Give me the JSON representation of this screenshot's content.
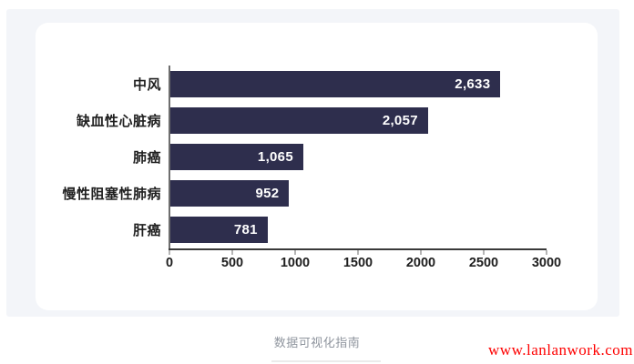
{
  "page": {
    "footer_caption": "数据可视化指南",
    "watermark": "www.lanlanwork.com",
    "background_color": "#ffffff",
    "panel_color": "#f3f5f9",
    "card_color": "#ffffff"
  },
  "chart_data": {
    "type": "bar",
    "orientation": "horizontal",
    "title": "",
    "categories": [
      "中风",
      "缺血性心脏病",
      "肺癌",
      "慢性阻塞性肺病",
      "肝癌"
    ],
    "values": [
      2633,
      2057,
      1065,
      952,
      781
    ],
    "value_labels": [
      "2,633",
      "2,057",
      "1,065",
      "952",
      "781"
    ],
    "x_ticks": [
      0,
      500,
      1000,
      1500,
      2000,
      2500,
      3000
    ],
    "x_tick_labels": [
      "0",
      "500",
      "1000",
      "1500",
      "2000",
      "2500",
      "3000"
    ],
    "xlim": [
      0,
      3000
    ],
    "grid": false,
    "legend": false,
    "bar_color": "#2e2e4d",
    "value_label_color": "#ffffff",
    "axis_color": "#3a3a3a",
    "tick_mark_color": "#b5b5b5",
    "tick_label_color": "#1e1e1e",
    "category_label_color": "#1f1f1f"
  }
}
